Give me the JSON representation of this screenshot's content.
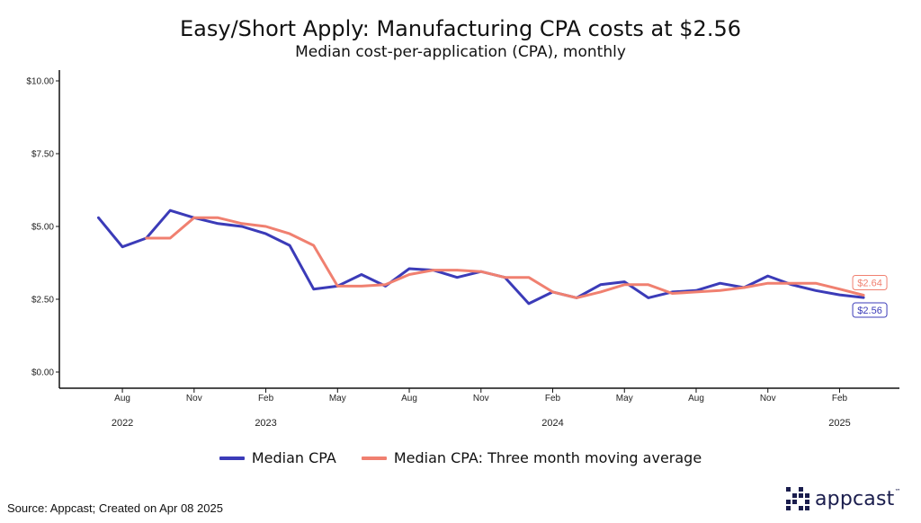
{
  "chart_data": {
    "type": "line",
    "title": "Easy/Short Apply: Manufacturing CPA costs at $2.56",
    "subtitle": "Median cost-per-application (CPA), monthly",
    "ylim": [
      0,
      10
    ],
    "y_ticks": [
      0,
      2.5,
      5,
      7.5,
      10
    ],
    "y_tick_labels": [
      "$0.00",
      "$2.50",
      "$5.00",
      "$7.50",
      "$10.00"
    ],
    "x": [
      "2022-07",
      "2022-08",
      "2022-09",
      "2022-10",
      "2022-11",
      "2022-12",
      "2023-01",
      "2023-02",
      "2023-03",
      "2023-04",
      "2023-05",
      "2023-06",
      "2023-07",
      "2023-08",
      "2023-09",
      "2023-10",
      "2023-11",
      "2023-12",
      "2024-01",
      "2024-02",
      "2024-03",
      "2024-04",
      "2024-05",
      "2024-06",
      "2024-07",
      "2024-08",
      "2024-09",
      "2024-10",
      "2024-11",
      "2024-12",
      "2025-01",
      "2025-02",
      "2025-03"
    ],
    "x_ticks": [
      {
        "at": "2022-08",
        "label": "Aug"
      },
      {
        "at": "2022-11",
        "label": "Nov"
      },
      {
        "at": "2023-02",
        "label": "Feb"
      },
      {
        "at": "2023-05",
        "label": "May"
      },
      {
        "at": "2023-08",
        "label": "Aug"
      },
      {
        "at": "2023-11",
        "label": "Nov"
      },
      {
        "at": "2024-02",
        "label": "Feb"
      },
      {
        "at": "2024-05",
        "label": "May"
      },
      {
        "at": "2024-08",
        "label": "Aug"
      },
      {
        "at": "2024-11",
        "label": "Nov"
      },
      {
        "at": "2025-02",
        "label": "Feb"
      }
    ],
    "year_labels": [
      {
        "at": "2022-08",
        "label": "2022"
      },
      {
        "at": "2023-02",
        "label": "2023"
      },
      {
        "at": "2024-02",
        "label": "2024"
      },
      {
        "at": "2025-02",
        "label": "2025"
      }
    ],
    "series": [
      {
        "name": "Median CPA",
        "color": "#3b3bb8",
        "values": [
          5.3,
          4.3,
          4.6,
          5.55,
          5.3,
          5.1,
          5.0,
          4.75,
          4.35,
          2.85,
          2.95,
          3.35,
          2.95,
          3.55,
          3.5,
          3.25,
          3.45,
          3.25,
          2.35,
          2.75,
          2.55,
          3.0,
          3.1,
          2.55,
          2.75,
          2.8,
          3.05,
          2.9,
          3.3,
          3.0,
          2.8,
          2.65,
          2.56
        ],
        "end_label": "$2.56"
      },
      {
        "name": "Median CPA: Three month moving average",
        "color": "#f08070",
        "values": [
          null,
          null,
          4.6,
          4.6,
          5.3,
          5.3,
          5.1,
          5.0,
          4.75,
          4.35,
          2.95,
          2.95,
          3.0,
          3.35,
          3.5,
          3.5,
          3.45,
          3.25,
          3.25,
          2.75,
          2.55,
          2.75,
          3.0,
          3.0,
          2.7,
          2.75,
          2.8,
          2.9,
          3.05,
          3.05,
          3.05,
          2.85,
          2.64
        ],
        "end_label": "$2.64"
      }
    ],
    "legend_position": "bottom",
    "grid": false
  },
  "footer": {
    "source": "Source: Appcast; Created on Apr 08 2025",
    "logo_text": "appcast",
    "logo_tm": "™"
  }
}
